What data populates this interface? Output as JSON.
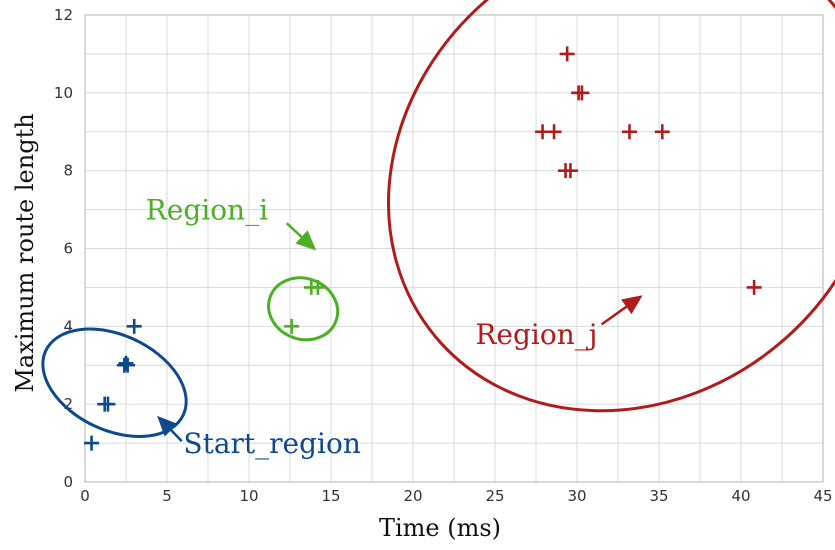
{
  "chart_data": {
    "type": "scatter",
    "title": "",
    "xlabel": "Time (ms)",
    "ylabel": "Maximum route length",
    "xlim": [
      0,
      45
    ],
    "ylim": [
      0,
      12
    ],
    "x_ticks": [
      0,
      5,
      10,
      15,
      20,
      25,
      30,
      35,
      40,
      45
    ],
    "y_ticks": [
      0,
      2,
      4,
      6,
      8,
      10,
      12
    ],
    "grid": true,
    "legend": "none",
    "series": [
      {
        "color": "#0d4a8c",
        "points": [
          {
            "x": 0.4,
            "y": 1
          },
          {
            "x": 1.2,
            "y": 2
          },
          {
            "x": 1.4,
            "y": 2
          },
          {
            "x": 2.4,
            "y": 3
          },
          {
            "x": 2.6,
            "y": 3
          },
          {
            "x": 2.5,
            "y": 3.05
          },
          {
            "x": 3.0,
            "y": 4
          }
        ]
      },
      {
        "color": "#4caf26",
        "points": [
          {
            "x": 12.6,
            "y": 4
          },
          {
            "x": 13.8,
            "y": 5
          },
          {
            "x": 14.2,
            "y": 5
          }
        ]
      },
      {
        "color": "#b01c1c",
        "points": [
          {
            "x": 29.4,
            "y": 11
          },
          {
            "x": 30.1,
            "y": 10
          },
          {
            "x": 30.3,
            "y": 10
          },
          {
            "x": 27.9,
            "y": 9
          },
          {
            "x": 28.6,
            "y": 9
          },
          {
            "x": 33.2,
            "y": 9
          },
          {
            "x": 35.2,
            "y": 9
          },
          {
            "x": 29.3,
            "y": 8
          },
          {
            "x": 29.6,
            "y": 8
          },
          {
            "x": 40.8,
            "y": 5
          }
        ]
      }
    ],
    "regions": [
      {
        "label": "Start_region",
        "color": "#0d4a8c",
        "cx": 1.8,
        "cy": 2.55,
        "rx": 2.9,
        "ry": 1.95,
        "angle": -65,
        "label_x": 6.0,
        "label_y": 0.75,
        "arrow_from": [
          5.9,
          1.05
        ],
        "arrow_to": [
          4.4,
          1.7
        ]
      },
      {
        "label": "Region_i",
        "color": "#4caf26",
        "cx": 13.3,
        "cy": 4.45,
        "rx": 1.85,
        "ry": 0.9,
        "angle": -70,
        "label_x": 3.7,
        "label_y": 6.75,
        "arrow_from": [
          12.3,
          6.65
        ],
        "arrow_to": [
          14.1,
          5.95
        ]
      },
      {
        "label": "Region_j",
        "color": "#b01c1c",
        "cx": 33.5,
        "cy": 8.0,
        "rx": 15.8,
        "ry": 5.8,
        "angle": -40,
        "label_x": 23.8,
        "label_y": 3.55,
        "arrow_from": [
          31.5,
          4.05
        ],
        "arrow_to": [
          34.0,
          4.8
        ]
      }
    ]
  }
}
